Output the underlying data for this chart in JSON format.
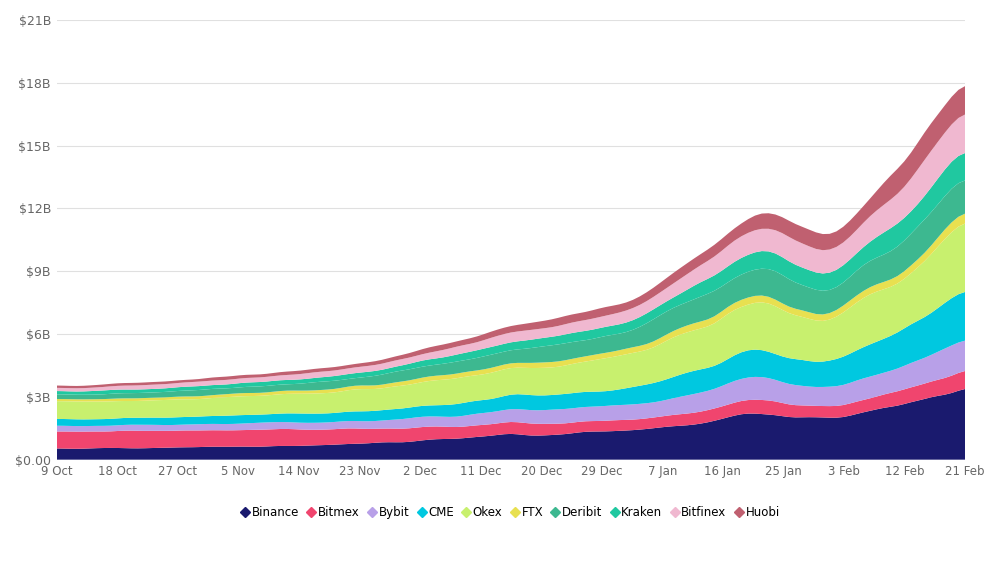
{
  "exchanges": [
    "Binance",
    "Bitmex",
    "Bybit",
    "CME",
    "Okex",
    "FTX",
    "Deribit",
    "Kraken",
    "Bitfinex",
    "Huobi"
  ],
  "colors": [
    "#1a1a6e",
    "#f0456e",
    "#b8a0e8",
    "#00c8e0",
    "#c8f06e",
    "#e8e050",
    "#3db890",
    "#20c8a0",
    "#f0b8d0",
    "#c06070"
  ],
  "x_labels": [
    "9 Oct",
    "18 Oct",
    "27 Oct",
    "5 Nov",
    "14 Nov",
    "23 Nov",
    "2 Dec",
    "11 Dec",
    "20 Dec",
    "29 Dec",
    "7 Jan",
    "16 Jan",
    "25 Jan",
    "3 Feb",
    "12 Feb",
    "21 Feb"
  ],
  "n_points": 135,
  "figsize": [
    10.0,
    5.81
  ],
  "dpi": 100,
  "ylim": [
    0,
    21000000000
  ],
  "yticks": [
    0,
    3000000000,
    6000000000,
    9000000000,
    12000000000,
    15000000000,
    18000000000,
    21000000000
  ],
  "ytick_labels": [
    "$0.00",
    "$3B",
    "$6B",
    "$9B",
    "$12B",
    "$15B",
    "$18B",
    "$21B"
  ],
  "background_color": "#ffffff"
}
